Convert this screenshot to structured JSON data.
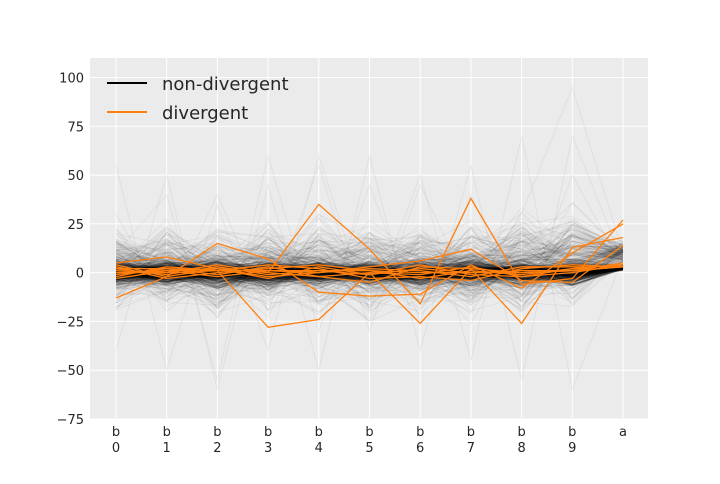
{
  "chart_data": {
    "type": "line",
    "subtype": "parallel-coordinates",
    "title": "",
    "xlabel": "",
    "ylabel": "",
    "categories": [
      [
        "b",
        "0"
      ],
      [
        "b",
        "1"
      ],
      [
        "b",
        "2"
      ],
      [
        "b",
        "3"
      ],
      [
        "b",
        "4"
      ],
      [
        "b",
        "5"
      ],
      [
        "b",
        "6"
      ],
      [
        "b",
        "7"
      ],
      [
        "b",
        "8"
      ],
      [
        "b",
        "9"
      ],
      [
        "a",
        ""
      ]
    ],
    "yticks": [
      "−75",
      "−50",
      "−25",
      "0",
      "25",
      "50",
      "75",
      "100"
    ],
    "ytick_values": [
      -75,
      -50,
      -25,
      0,
      25,
      50,
      75,
      100
    ],
    "ylim": [
      -75,
      110
    ],
    "grid": true,
    "background": "#ebebeb",
    "grid_color": "#ffffff",
    "legend": {
      "placement": "top-left",
      "entries": [
        {
          "label": "non-divergent",
          "color": "#000000"
        },
        {
          "label": "divergent",
          "color": "#ff7f0e"
        }
      ]
    },
    "series": [
      {
        "name": "non-divergent",
        "color": "#000000",
        "description_count": "many semi-transparent traces concentrated between -10 and 10",
        "envelope": {
          "core": [
            [
              -8,
              8
            ],
            [
              -8,
              8
            ],
            [
              -8,
              8
            ],
            [
              -8,
              8
            ],
            [
              -8,
              8
            ],
            [
              -8,
              8
            ],
            [
              -8,
              8
            ],
            [
              -8,
              8
            ],
            [
              -8,
              8
            ],
            [
              -8,
              8
            ],
            [
              1,
              4
            ]
          ],
          "spread": [
            [
              -40,
              45
            ],
            [
              -40,
              48
            ],
            [
              -45,
              45
            ],
            [
              -45,
              50
            ],
            [
              -45,
              50
            ],
            [
              -45,
              50
            ],
            [
              -45,
              50
            ],
            [
              -45,
              50
            ],
            [
              -45,
              55
            ],
            [
              -45,
              60
            ],
            [
              -5,
              25
            ]
          ]
        },
        "outlier_traces": [
          [
            30,
            -15,
            40,
            -20,
            55,
            -30,
            45,
            -10,
            30,
            95,
            10
          ],
          [
            -40,
            50,
            -60,
            45,
            -50,
            60,
            -40,
            55,
            -55,
            70,
            5
          ],
          [
            55,
            -50,
            35,
            -40,
            60,
            -20,
            50,
            -45,
            70,
            -60,
            8
          ],
          [
            10,
            40,
            -55,
            60,
            -30,
            45,
            -25,
            40,
            -20,
            50,
            2
          ]
        ]
      },
      {
        "name": "divergent",
        "color": "#ff7f0e",
        "traces": [
          [
            -13,
            -2,
            15,
            7,
            -10,
            -12,
            -11,
            4,
            -8,
            10,
            25
          ],
          [
            0,
            1,
            2,
            0,
            35,
            12,
            -16,
            38,
            -6,
            -3,
            27
          ],
          [
            2,
            2,
            1,
            -28,
            -24,
            0,
            -26,
            2,
            -26,
            13,
            18
          ],
          [
            5,
            8,
            2,
            -2,
            0,
            3,
            6,
            12,
            -4,
            -5,
            14
          ],
          [
            1,
            0,
            4,
            0,
            -2,
            -5,
            3,
            2,
            0,
            1,
            5
          ],
          [
            -2,
            3,
            1,
            4,
            2,
            -3,
            -2,
            -4,
            2,
            4,
            3
          ],
          [
            3,
            -3,
            0,
            2,
            4,
            1,
            -3,
            1,
            -1,
            2,
            4
          ],
          [
            -3,
            1,
            -2,
            1,
            0,
            2,
            1,
            -2,
            3,
            3,
            3
          ],
          [
            2,
            -1,
            3,
            -1,
            1,
            -1,
            2,
            0,
            1,
            1,
            3
          ],
          [
            -1,
            2,
            -1,
            3,
            -2,
            0,
            -1,
            3,
            -2,
            2,
            4
          ],
          [
            0,
            0,
            1,
            1,
            1,
            1,
            0,
            0,
            0,
            1,
            3
          ],
          [
            4,
            -2,
            2,
            -3,
            3,
            -1,
            4,
            -1,
            -2,
            0,
            4
          ]
        ]
      }
    ]
  }
}
